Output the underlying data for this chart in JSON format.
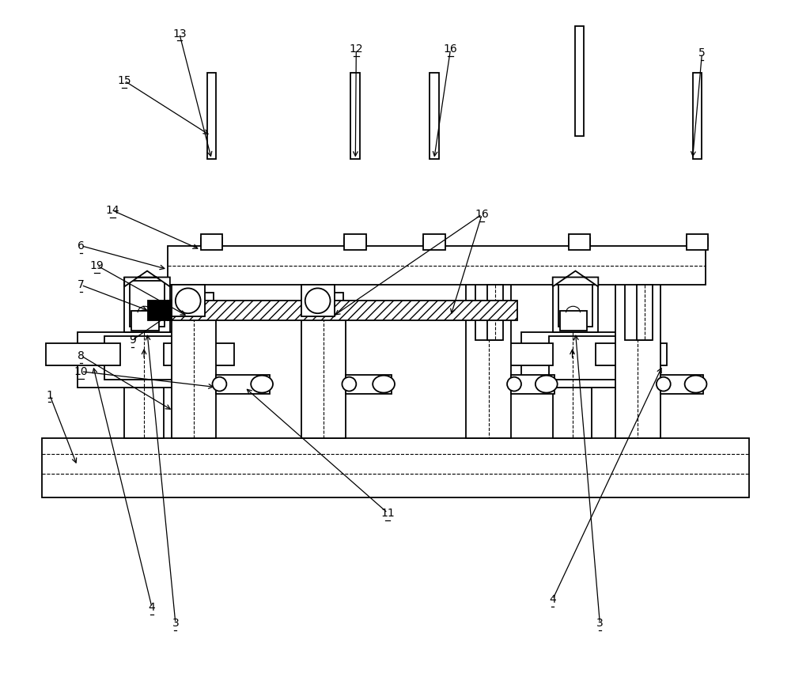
{
  "figsize": [
    10.0,
    8.56
  ],
  "dpi": 100,
  "bg_color": "#ffffff",
  "lw": 1.3,
  "thin": 0.8,
  "fs": 10
}
